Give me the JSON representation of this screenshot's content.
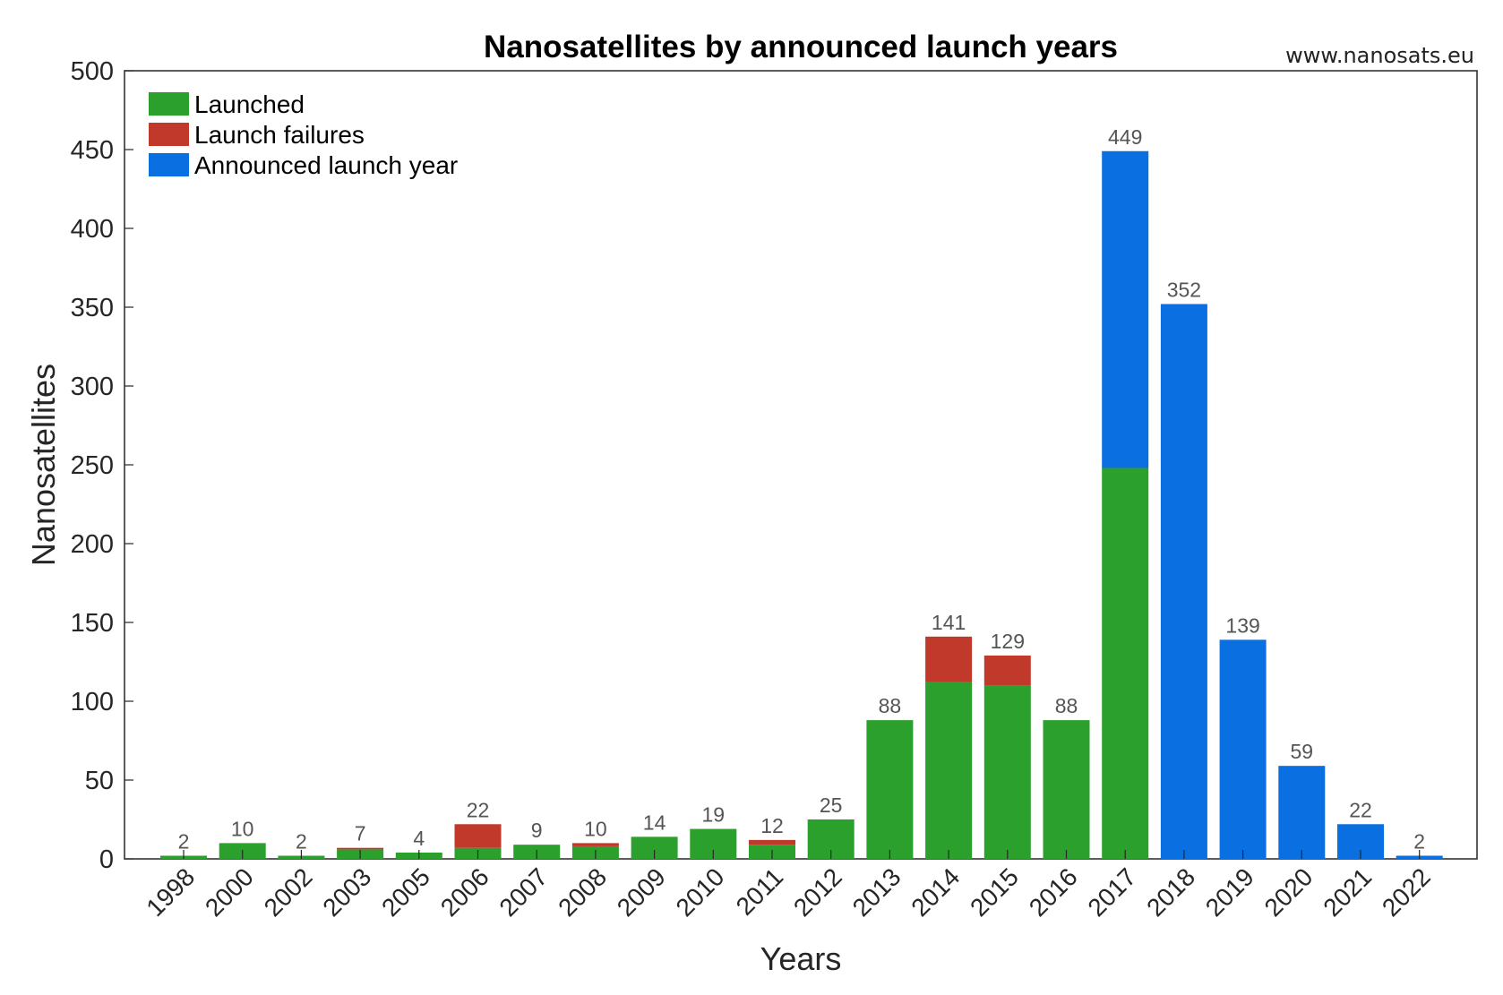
{
  "chart_data": {
    "type": "bar",
    "stacked": true,
    "title": "Nanosatellites by announced launch years",
    "source": "www.nanosats.eu",
    "xlabel": "Years",
    "ylabel": "Nanosatellites",
    "ylim": [
      0,
      500
    ],
    "yticks": [
      0,
      50,
      100,
      150,
      200,
      250,
      300,
      350,
      400,
      450,
      500
    ],
    "grid": false,
    "legend_position": "top-left",
    "categories": [
      "1998",
      "2000",
      "2002",
      "2003",
      "2005",
      "2006",
      "2007",
      "2008",
      "2009",
      "2010",
      "2011",
      "2012",
      "2013",
      "2014",
      "2015",
      "2016",
      "2017",
      "2018",
      "2019",
      "2020",
      "2021",
      "2022"
    ],
    "series": [
      {
        "name": "Launched",
        "color": "#2ca02c",
        "values": [
          2,
          10,
          2,
          6,
          4,
          7,
          9,
          8,
          14,
          19,
          9,
          25,
          88,
          112,
          110,
          88,
          248,
          0,
          0,
          0,
          0,
          0
        ]
      },
      {
        "name": "Launch failures",
        "color": "#c1392b",
        "values": [
          0,
          0,
          0,
          1,
          0,
          15,
          0,
          2,
          0,
          0,
          3,
          0,
          0,
          29,
          19,
          0,
          0,
          0,
          0,
          0,
          0,
          0
        ]
      },
      {
        "name": "Announced launch year",
        "color": "#0a6fe0",
        "values": [
          0,
          0,
          0,
          0,
          0,
          0,
          0,
          0,
          0,
          0,
          0,
          0,
          0,
          0,
          0,
          0,
          201,
          352,
          139,
          59,
          22,
          2
        ]
      }
    ],
    "totals": [
      2,
      10,
      2,
      7,
      4,
      22,
      9,
      10,
      14,
      19,
      12,
      25,
      88,
      141,
      129,
      88,
      449,
      352,
      139,
      59,
      22,
      2
    ]
  }
}
